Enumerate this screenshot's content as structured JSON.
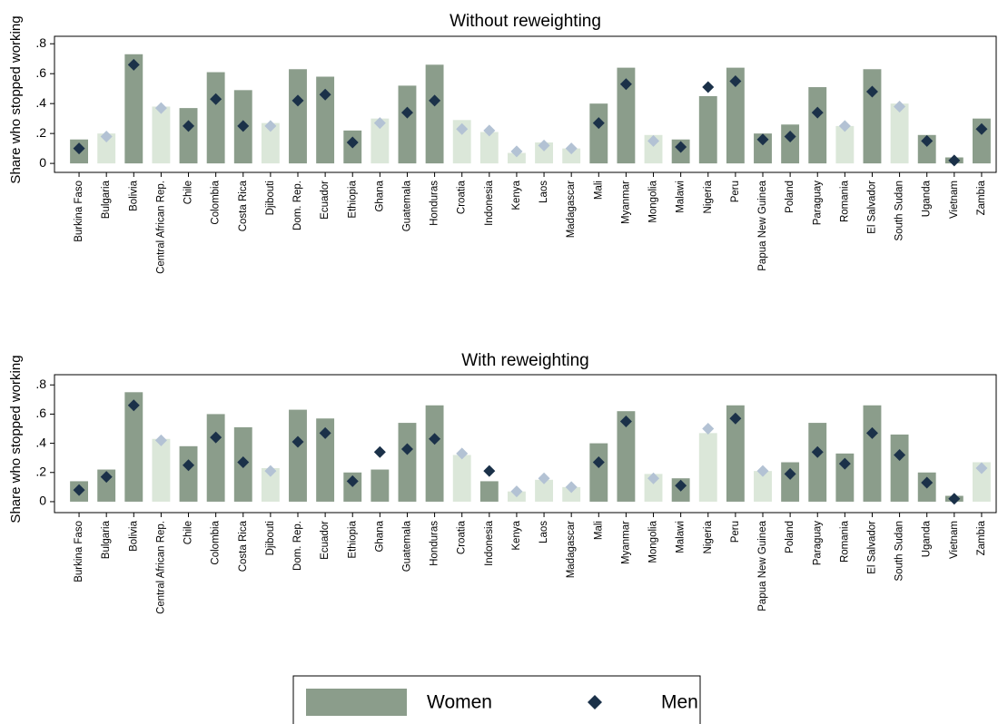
{
  "chart_data": [
    {
      "type": "bar",
      "title": "Without reweighting",
      "y_label": "Share who stopped working",
      "categories": [
        "Burkina Faso",
        "Bulgaria",
        "Bolivia",
        "Central African Rep.",
        "Chile",
        "Colombia",
        "Costa Rica",
        "Djibouti",
        "Dom. Rep.",
        "Ecuador",
        "Ethiopia",
        "Ghana",
        "Guatemala",
        "Honduras",
        "Croatia",
        "Indonesia",
        "Kenya",
        "Laos",
        "Madagascar",
        "Mali",
        "Myanmar",
        "Mongolia",
        "Malawi",
        "Nigeria",
        "Peru",
        "Papua New Guinea",
        "Poland",
        "Paraguay",
        "Romania",
        "El Salvador",
        "South Sudan",
        "Uganda",
        "Vietnam",
        "Zambia"
      ],
      "series": [
        {
          "name": "Women",
          "mark": "bar",
          "values": [
            0.16,
            0.2,
            0.73,
            0.38,
            0.37,
            0.61,
            0.49,
            0.27,
            0.63,
            0.58,
            0.22,
            0.3,
            0.52,
            0.66,
            0.29,
            0.21,
            0.07,
            0.14,
            0.1,
            0.4,
            0.64,
            0.19,
            0.16,
            0.45,
            0.64,
            0.2,
            0.26,
            0.51,
            0.25,
            0.63,
            0.4,
            0.19,
            0.04,
            0.3
          ],
          "colors": [
            "#8b9d8b",
            "#dbe7d9",
            "#8b9d8b",
            "#dbe7d9",
            "#8b9d8b",
            "#8b9d8b",
            "#8b9d8b",
            "#dbe7d9",
            "#8b9d8b",
            "#8b9d8b",
            "#8b9d8b",
            "#dbe7d9",
            "#8b9d8b",
            "#8b9d8b",
            "#dbe7d9",
            "#dbe7d9",
            "#dbe7d9",
            "#dbe7d9",
            "#dbe7d9",
            "#8b9d8b",
            "#8b9d8b",
            "#dbe7d9",
            "#8b9d8b",
            "#8b9d8b",
            "#8b9d8b",
            "#8b9d8b",
            "#8b9d8b",
            "#8b9d8b",
            "#dbe7d9",
            "#8b9d8b",
            "#dbe7d9",
            "#8b9d8b",
            "#8b9d8b",
            "#8b9d8b"
          ]
        },
        {
          "name": "Men",
          "mark": "diamond",
          "values": [
            0.1,
            0.18,
            0.66,
            0.37,
            0.25,
            0.43,
            0.25,
            0.25,
            0.42,
            0.46,
            0.14,
            0.27,
            0.34,
            0.42,
            0.23,
            0.22,
            0.08,
            0.12,
            0.1,
            0.27,
            0.53,
            0.15,
            0.11,
            0.51,
            0.55,
            0.16,
            0.18,
            0.34,
            0.25,
            0.48,
            0.38,
            0.15,
            0.02,
            0.23
          ],
          "colors": [
            "#1b3149",
            "#b3c2d4",
            "#1b3149",
            "#b3c2d4",
            "#1b3149",
            "#1b3149",
            "#1b3149",
            "#b3c2d4",
            "#1b3149",
            "#1b3149",
            "#1b3149",
            "#b3c2d4",
            "#1b3149",
            "#1b3149",
            "#b3c2d4",
            "#b3c2d4",
            "#b3c2d4",
            "#b3c2d4",
            "#b3c2d4",
            "#1b3149",
            "#1b3149",
            "#b3c2d4",
            "#1b3149",
            "#1b3149",
            "#1b3149",
            "#1b3149",
            "#1b3149",
            "#1b3149",
            "#b3c2d4",
            "#1b3149",
            "#b3c2d4",
            "#1b3149",
            "#1b3149",
            "#1b3149"
          ]
        }
      ],
      "ylim": [
        -0.06,
        0.85
      ],
      "yticks": [
        0,
        {
          "value": 0.2,
          "label": ".2"
        },
        {
          "value": 0.4,
          "label": ".4"
        },
        {
          "value": 0.6,
          "label": ".6"
        },
        {
          "value": 0.8,
          "label": ".8"
        }
      ]
    },
    {
      "type": "bar",
      "title": "With reweighting",
      "y_label": "Share who stopped working",
      "categories": [
        "Burkina Faso",
        "Bulgaria",
        "Bolivia",
        "Central African Rep.",
        "Chile",
        "Colombia",
        "Costa Rica",
        "Djibouti",
        "Dom. Rep.",
        "Ecuador",
        "Ethiopia",
        "Ghana",
        "Guatemala",
        "Honduras",
        "Croatia",
        "Indonesia",
        "Kenya",
        "Laos",
        "Madagascar",
        "Mali",
        "Myanmar",
        "Mongolia",
        "Malawi",
        "Nigeria",
        "Peru",
        "Papua New Guinea",
        "Poland",
        "Paraguay",
        "Romania",
        "El Salvador",
        "South Sudan",
        "Uganda",
        "Vietnam",
        "Zambia"
      ],
      "series": [
        {
          "mark": "bar",
          "values": [
            0.14,
            0.22,
            0.75,
            0.43,
            0.38,
            0.6,
            0.51,
            0.23,
            0.63,
            0.57,
            0.2,
            0.22,
            0.54,
            0.66,
            0.32,
            0.14,
            0.07,
            0.15,
            0.1,
            0.4,
            0.62,
            0.19,
            0.16,
            0.47,
            0.66,
            0.21,
            0.27,
            0.54,
            0.33,
            0.66,
            0.46,
            0.2,
            0.04,
            0.27
          ],
          "colors": [
            "#8b9d8b",
            "#8b9d8b",
            "#8b9d8b",
            "#dbe7d9",
            "#8b9d8b",
            "#8b9d8b",
            "#8b9d8b",
            "#dbe7d9",
            "#8b9d8b",
            "#8b9d8b",
            "#8b9d8b",
            "#8b9d8b",
            "#8b9d8b",
            "#8b9d8b",
            "#dbe7d9",
            "#8b9d8b",
            "#dbe7d9",
            "#dbe7d9",
            "#dbe7d9",
            "#8b9d8b",
            "#8b9d8b",
            "#dbe7d9",
            "#8b9d8b",
            "#dbe7d9",
            "#8b9d8b",
            "#dbe7d9",
            "#8b9d8b",
            "#8b9d8b",
            "#8b9d8b",
            "#8b9d8b",
            "#8b9d8b",
            "#8b9d8b",
            "#8b9d8b",
            "#dbe7d9"
          ]
        },
        {
          "mark": "diamond",
          "values": [
            0.08,
            0.17,
            0.66,
            0.42,
            0.25,
            0.44,
            0.27,
            0.21,
            0.41,
            0.47,
            0.14,
            0.34,
            0.36,
            0.43,
            0.33,
            0.21,
            0.07,
            0.16,
            0.1,
            0.27,
            0.55,
            0.16,
            0.11,
            0.5,
            0.57,
            0.21,
            0.19,
            0.34,
            0.26,
            0.47,
            0.32,
            0.13,
            0.02,
            0.23
          ],
          "colors": [
            "#1b3149",
            "#1b3149",
            "#1b3149",
            "#b3c2d4",
            "#1b3149",
            "#1b3149",
            "#1b3149",
            "#b3c2d4",
            "#1b3149",
            "#1b3149",
            "#1b3149",
            "#1b3149",
            "#1b3149",
            "#1b3149",
            "#b3c2d4",
            "#1b3149",
            "#b3c2d4",
            "#b3c2d4",
            "#b3c2d4",
            "#1b3149",
            "#1b3149",
            "#b3c2d4",
            "#1b3149",
            "#b3c2d4",
            "#1b3149",
            "#b3c2d4",
            "#1b3149",
            "#1b3149",
            "#1b3149",
            "#1b3149",
            "#1b3149",
            "#1b3149",
            "#1b3149",
            "#b3c2d4"
          ]
        }
      ],
      "ylim": [
        -0.075,
        0.87
      ],
      "yticks": [
        0,
        {
          "value": 0.2,
          "label": ".2"
        },
        {
          "value": 0.4,
          "label": ".4"
        },
        {
          "value": 0.6,
          "label": ".6"
        },
        {
          "value": 0.8,
          "label": ".8"
        }
      ]
    }
  ]
}
